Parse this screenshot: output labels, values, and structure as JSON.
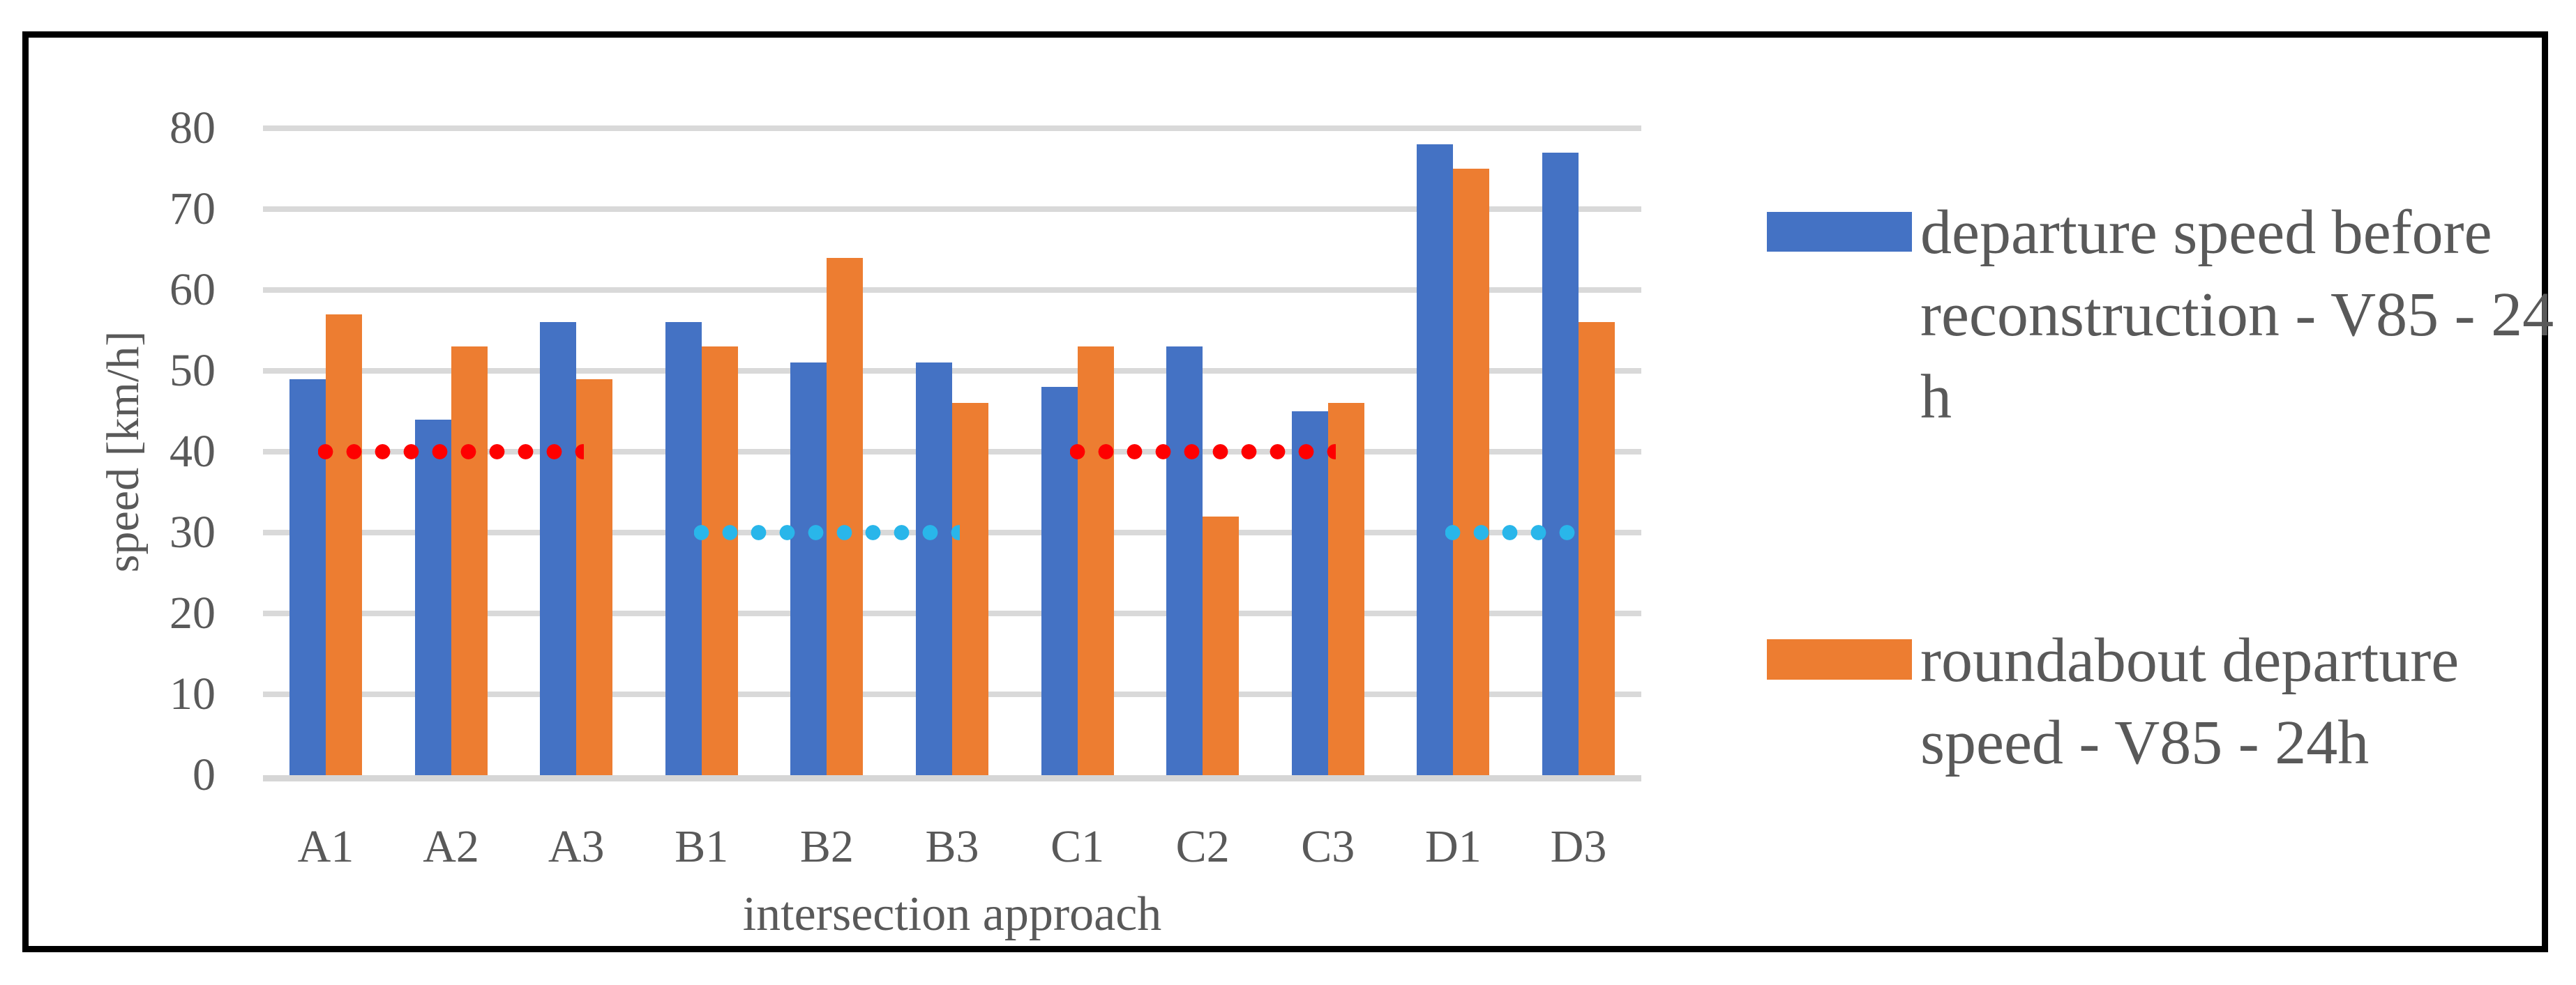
{
  "chart_data": {
    "type": "bar",
    "title": "",
    "categories": [
      "A1",
      "A2",
      "A3",
      "B1",
      "B2",
      "B3",
      "C1",
      "C2",
      "C3",
      "D1",
      "D3"
    ],
    "series": [
      {
        "name": "departure speed before reconstruction - V85 - 24 h",
        "color": "#4472C4",
        "values": [
          49,
          44,
          56,
          56,
          51,
          51,
          48,
          53,
          45,
          78,
          77
        ]
      },
      {
        "name": "roundabout departure speed - V85 - 24h",
        "color": "#ED7D31",
        "values": [
          57,
          53,
          49,
          53,
          64,
          46,
          53,
          32,
          46,
          75,
          56
        ]
      }
    ],
    "reference_lines": [
      {
        "value": 40,
        "color": "#FE0000",
        "from": "A1",
        "to": "A3",
        "style": "dotted"
      },
      {
        "value": 30,
        "color": "#29B6EA",
        "from": "B1",
        "to": "B3",
        "style": "dotted"
      },
      {
        "value": 40,
        "color": "#FE0000",
        "from": "C1",
        "to": "C3",
        "style": "dotted"
      },
      {
        "value": 30,
        "color": "#29B6EA",
        "from": "D1",
        "to": "D3",
        "style": "dotted"
      }
    ],
    "xlabel": "intersection approach",
    "ylabel": "speed [km/h]",
    "ylim": [
      0,
      80
    ],
    "yticks": [
      0,
      10,
      20,
      30,
      40,
      50,
      60,
      70,
      80
    ],
    "grid": true,
    "gridline_color": "#D9D9D9",
    "text_color": "#595959",
    "legend_position": "right"
  },
  "legend": {
    "items": [
      {
        "label": "departure speed before reconstruction - V85 - 24 h",
        "color": "#4472C4",
        "lines": [
          "departure speed before",
          "reconstruction - V85 - 24",
          "h"
        ]
      },
      {
        "label": "roundabout departure speed - V85 - 24h",
        "color": "#ED7D31",
        "lines": [
          "roundabout departure",
          "speed - V85 - 24h"
        ]
      }
    ]
  }
}
